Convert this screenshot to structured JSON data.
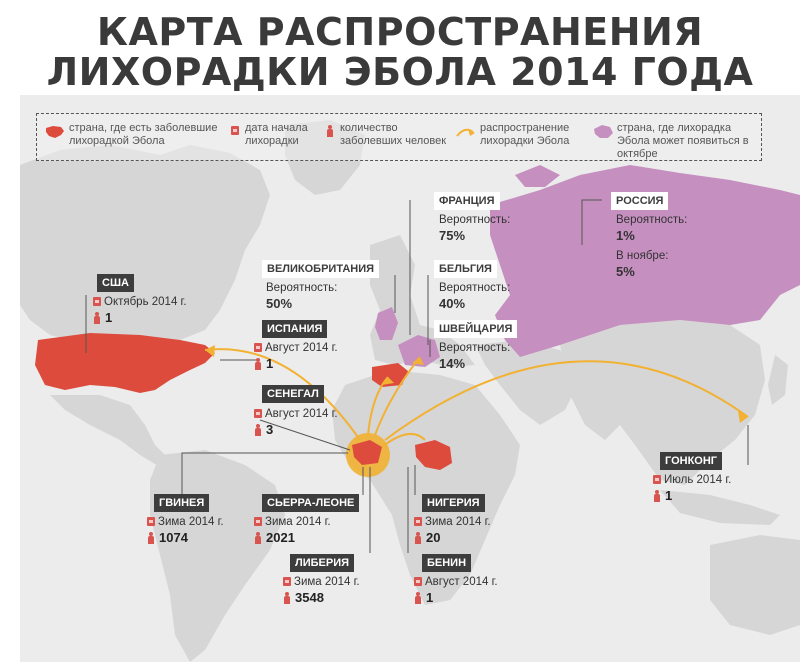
{
  "title": {
    "line1": "КАРТА РАСПРОСТРАНЕНИЯ",
    "line2": "ЛИХОРАДКИ ЭБОЛА 2014 ГОДА"
  },
  "legend": {
    "infected_country": "страна, где есть заболевшие лихорадкой Эбола",
    "start_date": "дата начала лихорадки",
    "infected_count": "количество заболевших человек",
    "spread": "распространение лихорадки Эбола",
    "october_risk": "страна, где лихорадка Эбола может появиться в октябре"
  },
  "colors": {
    "infected": "#dc4b3c",
    "risk": "#c58fc0",
    "spread_arrow": "#f2b133",
    "land": "#d6d6d6",
    "label_bg": "#3d3d3d"
  },
  "icons": {
    "calendar": "calendar-icon",
    "person": "person-icon"
  },
  "infected_countries": [
    {
      "name": "США",
      "date": "Октябрь 2014 г.",
      "count": "1"
    },
    {
      "name": "ИСПАНИЯ",
      "date": "Август 2014 г.",
      "count": "1"
    },
    {
      "name": "СЕНЕГАЛ",
      "date": "Август 2014 г.",
      "count": "3"
    },
    {
      "name": "ГВИНЕЯ",
      "date": "Зима 2014 г.",
      "count": "1074"
    },
    {
      "name": "СЬЕРРА-ЛЕОНЕ",
      "date": "Зима 2014 г.",
      "count": "2021"
    },
    {
      "name": "ЛИБЕРИЯ",
      "date": "Зима 2014 г.",
      "count": "3548"
    },
    {
      "name": "НИГЕРИЯ",
      "date": "Зима 2014 г.",
      "count": "20"
    },
    {
      "name": "БЕНИН",
      "date": "Август 2014 г.",
      "count": "1"
    },
    {
      "name": "ГОНКОНГ",
      "date": "Июль 2014 г.",
      "count": "1"
    }
  ],
  "risk_countries": [
    {
      "name": "ВЕЛИКОБРИТАНИЯ",
      "prob_label": "Вероятность:",
      "prob": "50%"
    },
    {
      "name": "ФРАНЦИЯ",
      "prob_label": "Вероятность:",
      "prob": "75%"
    },
    {
      "name": "БЕЛЬГИЯ",
      "prob_label": "Вероятность:",
      "prob": "40%"
    },
    {
      "name": "ШВЕЙЦАРИЯ",
      "prob_label": "Вероятность:",
      "prob": "14%"
    },
    {
      "name": "РОССИЯ",
      "prob_label": "Вероятность:",
      "prob": "1%",
      "later_label": "В ноябре:",
      "later_prob": "5%"
    }
  ]
}
